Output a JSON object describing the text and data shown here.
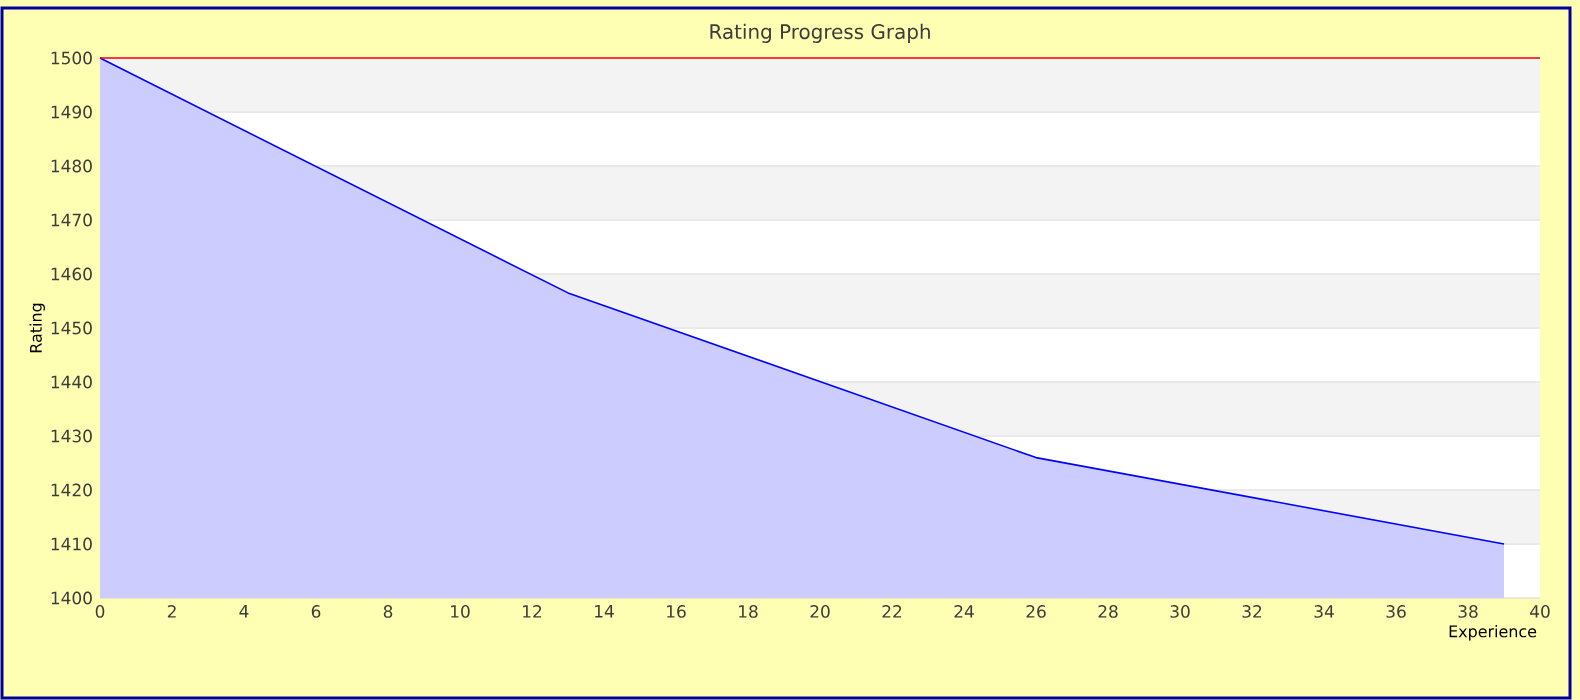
{
  "chart_data": {
    "type": "area",
    "title": "Rating Progress Graph",
    "xlabel": "Experience",
    "ylabel": "Rating",
    "x": [
      0,
      13,
      26,
      39
    ],
    "series": [
      {
        "color": "#0000ff",
        "values": [
          1500,
          1456.5,
          1426,
          1410
        ]
      }
    ],
    "xlim": [
      0,
      40
    ],
    "ylim": [
      1400,
      1500
    ],
    "xticks": [
      0,
      2,
      4,
      6,
      8,
      10,
      12,
      14,
      16,
      18,
      20,
      22,
      24,
      26,
      28,
      30,
      32,
      34,
      36,
      38,
      40
    ],
    "yticks": [
      1400,
      1410,
      1420,
      1430,
      1440,
      1450,
      1460,
      1470,
      1480,
      1490,
      1500
    ],
    "grid": "y",
    "ref_lines": [
      {
        "axis": "y",
        "value": 1500,
        "color": "#ff0000"
      }
    ]
  }
}
